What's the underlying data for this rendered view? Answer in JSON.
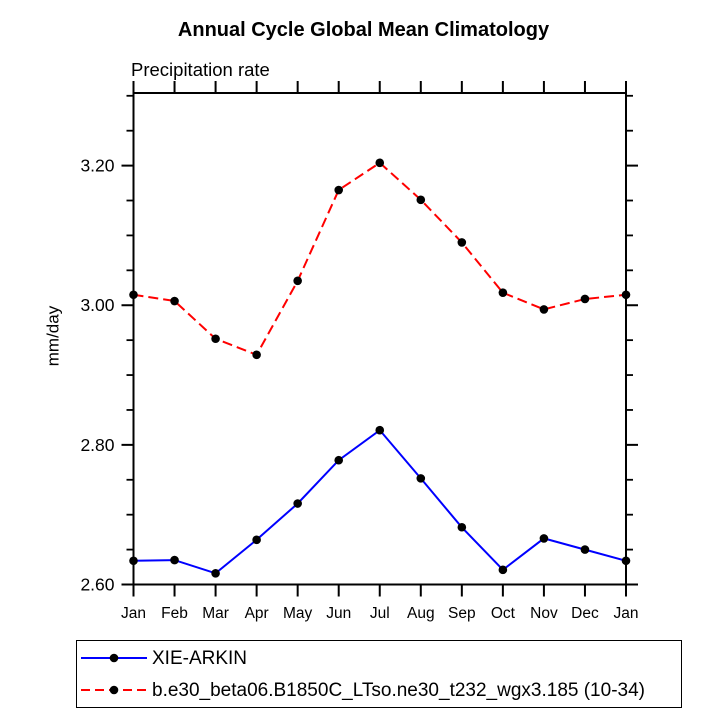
{
  "chart_data": {
    "type": "line",
    "title": "Annual Cycle Global Mean Climatology",
    "subtitle": "Precipitation rate",
    "ylabel": "mm/day",
    "x": [
      "Jan",
      "Feb",
      "Mar",
      "Apr",
      "May",
      "Jun",
      "Jul",
      "Aug",
      "Sep",
      "Oct",
      "Nov",
      "Dec",
      "Jan"
    ],
    "ylim": [
      2.6,
      3.304
    ],
    "ytick_major": [
      2.6,
      2.8,
      3.0,
      3.2
    ],
    "ytick_minor_step": 0.05,
    "grid": false,
    "legend_position": "below-left",
    "series": [
      {
        "name": "XIE-ARKIN",
        "color": "#0000ff",
        "line_style": "solid",
        "marker": "filled-circle",
        "marker_color": "#000000",
        "values": [
          2.634,
          2.635,
          2.616,
          2.664,
          2.716,
          2.778,
          2.821,
          2.752,
          2.682,
          2.621,
          2.666,
          2.65,
          2.634
        ]
      },
      {
        "name": "b.e30_beta06.B1850C_LTso.ne30_t232_wgx3.185 (10-34)",
        "color": "#ff0000",
        "line_style": "dashed",
        "marker": "filled-circle",
        "marker_color": "#000000",
        "values": [
          3.015,
          3.006,
          2.952,
          2.929,
          3.035,
          3.165,
          3.204,
          3.151,
          3.09,
          3.018,
          2.994,
          3.009,
          3.015
        ]
      }
    ]
  }
}
